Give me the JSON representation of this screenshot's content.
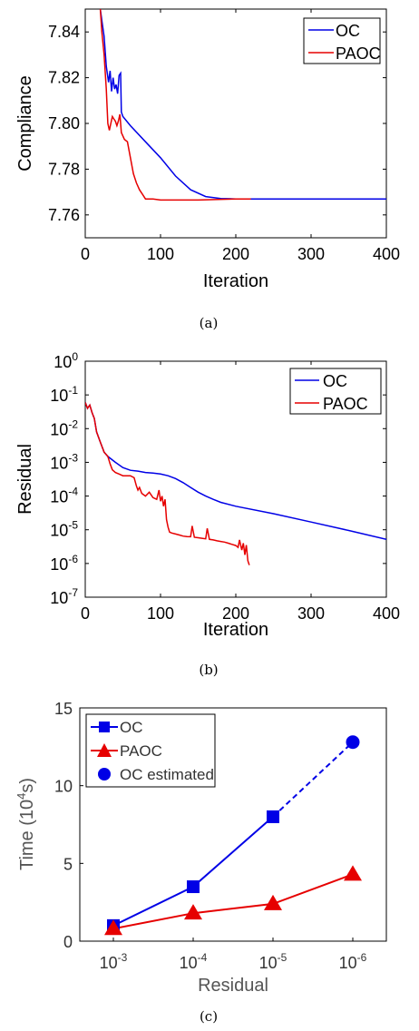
{
  "colors": {
    "oc": "#0000e6",
    "paoc": "#e60000",
    "axis": "#000000",
    "gray": "#555555"
  },
  "chart_data": [
    {
      "type": "line",
      "caption": "(a)",
      "xlabel": "Iteration",
      "ylabel": "Compliance",
      "xlim": [
        0,
        400
      ],
      "ylim": [
        7.75,
        7.85
      ],
      "xticks": [
        "0",
        "100",
        "200",
        "300",
        "400"
      ],
      "yticks": [
        "7.76",
        "7.78",
        "7.80",
        "7.82",
        "7.84"
      ],
      "grid": false,
      "legend_position": "top-right",
      "series": [
        {
          "name": "OC",
          "color": "#0000e6",
          "x": [
            20,
            22,
            25,
            28,
            31,
            33,
            35,
            37,
            39,
            41,
            43,
            45,
            47,
            48,
            50,
            60,
            80,
            100,
            120,
            140,
            160,
            180,
            200,
            220,
            260,
            300,
            350,
            400
          ],
          "y": [
            7.85,
            7.845,
            7.838,
            7.825,
            7.818,
            7.823,
            7.814,
            7.82,
            7.815,
            7.817,
            7.813,
            7.821,
            7.822,
            7.805,
            7.803,
            7.799,
            7.792,
            7.785,
            7.777,
            7.771,
            7.768,
            7.7672,
            7.767,
            7.767,
            7.767,
            7.767,
            7.767,
            7.767
          ]
        },
        {
          "name": "PAOC",
          "color": "#e60000",
          "x": [
            20,
            22,
            25,
            28,
            30,
            32,
            34,
            36,
            38,
            40,
            42,
            44,
            46,
            48,
            52,
            56,
            60,
            64,
            68,
            72,
            76,
            80,
            90,
            100,
            110,
            150,
            200,
            220
          ],
          "y": [
            7.85,
            7.84,
            7.83,
            7.815,
            7.8,
            7.797,
            7.8,
            7.803,
            7.802,
            7.801,
            7.799,
            7.801,
            7.804,
            7.796,
            7.793,
            7.792,
            7.785,
            7.778,
            7.774,
            7.771,
            7.769,
            7.767,
            7.767,
            7.7665,
            7.7665,
            7.7665,
            7.767,
            7.767
          ]
        }
      ]
    },
    {
      "type": "line",
      "caption": "(b)",
      "xlabel": "Iteration",
      "ylabel": "Residual",
      "xlim": [
        0,
        400
      ],
      "ylim": [
        1e-07,
        1
      ],
      "yscale": "log",
      "xticks": [
        "0",
        "100",
        "200",
        "300",
        "400"
      ],
      "yticks": [
        {
          "base": "10",
          "exp": "0"
        },
        {
          "base": "10",
          "exp": "-1"
        },
        {
          "base": "10",
          "exp": "-2"
        },
        {
          "base": "10",
          "exp": "-3"
        },
        {
          "base": "10",
          "exp": "-4"
        },
        {
          "base": "10",
          "exp": "-5"
        },
        {
          "base": "10",
          "exp": "-6"
        },
        {
          "base": "10",
          "exp": "-7"
        }
      ],
      "grid": false,
      "legend_position": "top-right",
      "series": [
        {
          "name": "OC",
          "color": "#0000e6",
          "x": [
            0,
            3,
            6,
            9,
            12,
            15,
            20,
            25,
            30,
            40,
            50,
            60,
            70,
            80,
            90,
            100,
            110,
            120,
            130,
            140,
            150,
            160,
            170,
            180,
            200,
            250,
            300,
            350,
            400
          ],
          "y": [
            0.06,
            0.04,
            0.05,
            0.03,
            0.02,
            0.008,
            0.004,
            0.002,
            0.0015,
            0.001,
            0.0007,
            0.00058,
            0.00055,
            0.0005,
            0.00048,
            0.00045,
            0.0004,
            0.00033,
            0.00025,
            0.00018,
            0.00013,
            0.0001,
            8e-05,
            6.5e-05,
            5e-05,
            3e-05,
            1.7e-05,
            9.5e-06,
            5.2e-06
          ]
        },
        {
          "name": "PAOC",
          "color": "#e60000",
          "x": [
            0,
            3,
            6,
            9,
            12,
            15,
            20,
            25,
            30,
            33,
            36,
            40,
            45,
            50,
            55,
            60,
            65,
            68,
            70,
            72,
            75,
            80,
            85,
            90,
            95,
            98,
            100,
            102,
            104,
            106,
            108,
            110,
            112,
            115,
            120,
            125,
            130,
            135,
            140,
            142,
            145,
            150,
            155,
            160,
            162,
            165,
            170,
            175,
            180,
            185,
            190,
            195,
            200,
            203,
            205,
            208,
            210,
            212,
            214,
            216,
            218
          ],
          "y": [
            0.06,
            0.04,
            0.05,
            0.03,
            0.02,
            0.008,
            0.004,
            0.002,
            0.0015,
            0.0009,
            0.0006,
            0.0005,
            0.00045,
            0.0004,
            0.0004,
            0.0004,
            0.00035,
            0.0002,
            0.00015,
            0.00018,
            0.00012,
            0.0001,
            0.00013,
            9e-05,
            8e-05,
            0.00015,
            7e-05,
            0.0001,
            5e-05,
            8e-05,
            2e-05,
            1.2e-05,
            8.5e-06,
            8e-06,
            7.5e-06,
            7e-06,
            6.5e-06,
            6.3e-06,
            6.2e-06,
            1.3e-05,
            6e-06,
            5.8e-06,
            5.6e-06,
            5.4e-06,
            1.1e-05,
            5.2e-06,
            5e-06,
            4.7e-06,
            4.5e-06,
            4.3e-06,
            4e-06,
            3.7e-06,
            3.4e-06,
            3e-06,
            5e-06,
            2.5e-06,
            4e-06,
            1.8e-06,
            3.5e-06,
            1.2e-06,
            9e-07
          ]
        }
      ]
    },
    {
      "type": "line",
      "caption": "(c)",
      "xlabel": "Residual",
      "ylabel": {
        "pre": "Time (10",
        "sup": "4",
        "post": "s)"
      },
      "ylim": [
        0,
        15
      ],
      "yticks": [
        "0",
        "5",
        "10",
        "15"
      ],
      "categories": [
        {
          "base": "10",
          "exp": "-3"
        },
        {
          "base": "10",
          "exp": "-4"
        },
        {
          "base": "10",
          "exp": "-5"
        },
        {
          "base": "10",
          "exp": "-6"
        }
      ],
      "grid": false,
      "legend_position": "top-left",
      "series": [
        {
          "name": "OC",
          "color": "#0000e6",
          "marker": "square",
          "values": [
            1.0,
            3.5,
            8.0,
            null
          ]
        },
        {
          "name": "PAOC",
          "color": "#e60000",
          "marker": "triangle",
          "values": [
            0.8,
            1.8,
            2.4,
            4.3
          ]
        },
        {
          "name": "OC estimated",
          "color": "#0000e6",
          "marker": "circle",
          "values": [
            null,
            null,
            8.0,
            12.8
          ]
        }
      ]
    }
  ]
}
